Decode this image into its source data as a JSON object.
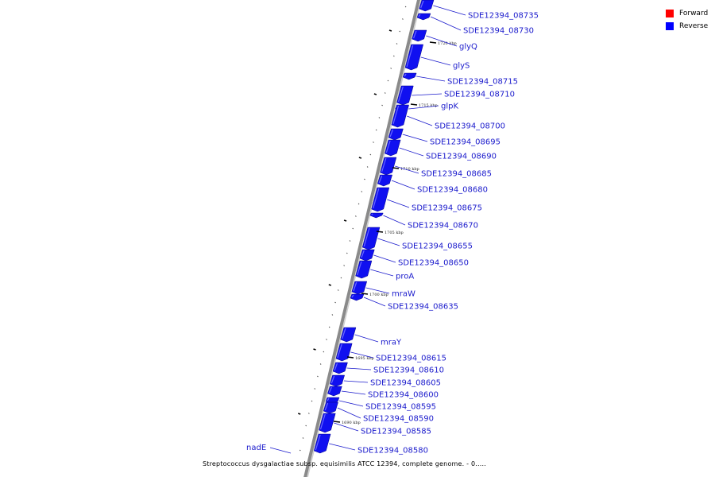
{
  "legend": {
    "items": [
      {
        "label": "Forward",
        "color": "#ff0000"
      },
      {
        "label": "Reverse",
        "color": "#0000ff"
      }
    ]
  },
  "caption": "Streptococcus dysgalactiae subsp. equisimilis ATCC 12394, complete genome. - 0.....",
  "colors": {
    "reverse_gene": "#1010f0",
    "label": "#1a1acc",
    "backbone": "#888888"
  },
  "kbp_markers": [
    "1720 kbp",
    "1715 kbp",
    "1710 kbp",
    "1705 kbp",
    "1700 kbp",
    "1695 kbp",
    "1690 kbp"
  ],
  "genes": [
    {
      "label": "SDE12394_08735",
      "strand": "reverse"
    },
    {
      "label": "SDE12394_08730",
      "strand": "reverse"
    },
    {
      "label": "glyQ",
      "strand": "reverse"
    },
    {
      "label": "glyS",
      "strand": "reverse"
    },
    {
      "label": "SDE12394_08715",
      "strand": "reverse"
    },
    {
      "label": "SDE12394_08710",
      "strand": "reverse"
    },
    {
      "label": "glpK",
      "strand": "reverse"
    },
    {
      "label": "SDE12394_08700",
      "strand": "reverse"
    },
    {
      "label": "SDE12394_08695",
      "strand": "reverse"
    },
    {
      "label": "SDE12394_08690",
      "strand": "reverse"
    },
    {
      "label": "SDE12394_08685",
      "strand": "reverse"
    },
    {
      "label": "SDE12394_08680",
      "strand": "reverse"
    },
    {
      "label": "SDE12394_08675",
      "strand": "reverse"
    },
    {
      "label": "SDE12394_08670",
      "strand": "reverse"
    },
    {
      "label": "SDE12394_08655",
      "strand": "reverse"
    },
    {
      "label": "SDE12394_08650",
      "strand": "reverse"
    },
    {
      "label": "proA",
      "strand": "reverse"
    },
    {
      "label": "mraW",
      "strand": "reverse"
    },
    {
      "label": "SDE12394_08635",
      "strand": "reverse"
    },
    {
      "label": "mraY",
      "strand": "reverse"
    },
    {
      "label": "SDE12394_08615",
      "strand": "reverse"
    },
    {
      "label": "SDE12394_08610",
      "strand": "reverse"
    },
    {
      "label": "SDE12394_08605",
      "strand": "reverse"
    },
    {
      "label": "SDE12394_08600",
      "strand": "reverse"
    },
    {
      "label": "SDE12394_08595",
      "strand": "reverse"
    },
    {
      "label": "SDE12394_08590",
      "strand": "reverse"
    },
    {
      "label": "SDE12394_08585",
      "strand": "reverse"
    },
    {
      "label": "SDE12394_08580",
      "strand": "reverse"
    },
    {
      "label": "nadE",
      "strand": "forward"
    }
  ]
}
